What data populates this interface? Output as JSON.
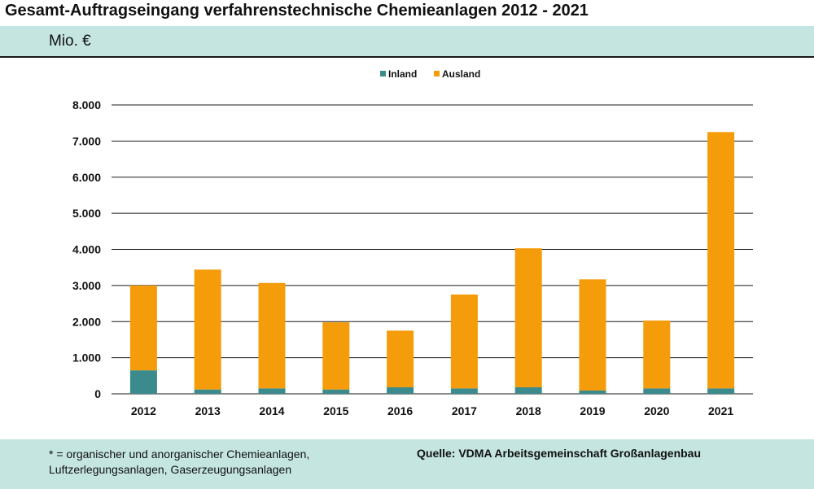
{
  "title": "Gesamt-Auftragseingang verfahrenstechnische Chemieanlagen 2012 - 2021",
  "unit": "Mio. €",
  "footer": {
    "note_line1": "* = organischer und anorganischer Chemieanlagen,",
    "note_line2": "Luftzerlegungsanlagen, Gaserzeugungsanlagen",
    "source": "Quelle: VDMA Arbeitsgemeinschaft Großanlagenbau"
  },
  "colors": {
    "inland": "#3b8a8c",
    "ausland": "#f59c0a",
    "band": "#c4e5e0"
  },
  "chart_data": {
    "type": "bar",
    "stacked": true,
    "categories": [
      "2012",
      "2013",
      "2014",
      "2015",
      "2016",
      "2017",
      "2018",
      "2019",
      "2020",
      "2021"
    ],
    "series": [
      {
        "name": "Inland",
        "values": [
          650,
          120,
          150,
          120,
          180,
          150,
          180,
          90,
          150,
          150
        ]
      },
      {
        "name": "Ausland",
        "values": [
          2350,
          3320,
          2920,
          1860,
          1570,
          2600,
          3850,
          3080,
          1880,
          7100
        ]
      }
    ],
    "ylim": [
      0,
      8000
    ],
    "yticks": [
      0,
      1000,
      2000,
      3000,
      4000,
      5000,
      6000,
      7000,
      8000
    ],
    "ytick_labels": [
      "0",
      "1.000",
      "2.000",
      "3.000",
      "4.000",
      "5.000",
      "6.000",
      "7.000",
      "8.000"
    ],
    "grid": true,
    "legend": "top-center"
  }
}
